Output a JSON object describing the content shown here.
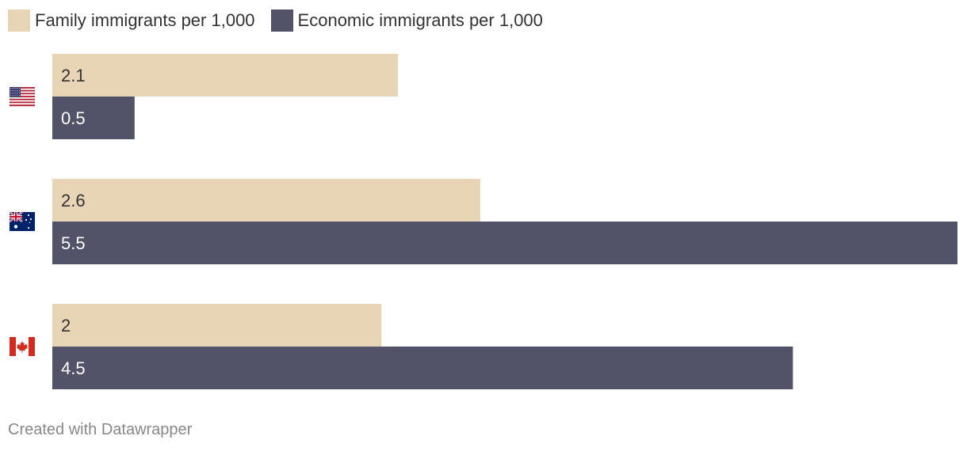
{
  "legend": {
    "items": [
      {
        "label": "Family immigrants per 1,000",
        "color": "#e8d5b5"
      },
      {
        "label": "Economic immigrants per 1,000",
        "color": "#525268"
      }
    ]
  },
  "chart_data": {
    "type": "bar",
    "orientation": "horizontal",
    "categories": [
      "United States",
      "Australia",
      "Canada"
    ],
    "category_icons": [
      "us-flag-icon",
      "australia-flag-icon",
      "canada-flag-icon"
    ],
    "series": [
      {
        "name": "Family immigrants per 1,000",
        "values": [
          2.1,
          2.6,
          2
        ],
        "labels": [
          "2.1",
          "2.6",
          "2"
        ],
        "color": "#e8d5b5",
        "label_color": "#333333"
      },
      {
        "name": "Economic immigrants per 1,000",
        "values": [
          0.5,
          5.5,
          4.5
        ],
        "labels": [
          "0.5",
          "5.5",
          "4.5"
        ],
        "color": "#525268",
        "label_color": "#ffffff"
      }
    ],
    "xlim": [
      0,
      5.5
    ],
    "title": "",
    "xlabel": "",
    "ylabel": "",
    "grid": false,
    "legend_position": "top-left"
  },
  "footer": {
    "credit": "Created with Datawrapper"
  }
}
